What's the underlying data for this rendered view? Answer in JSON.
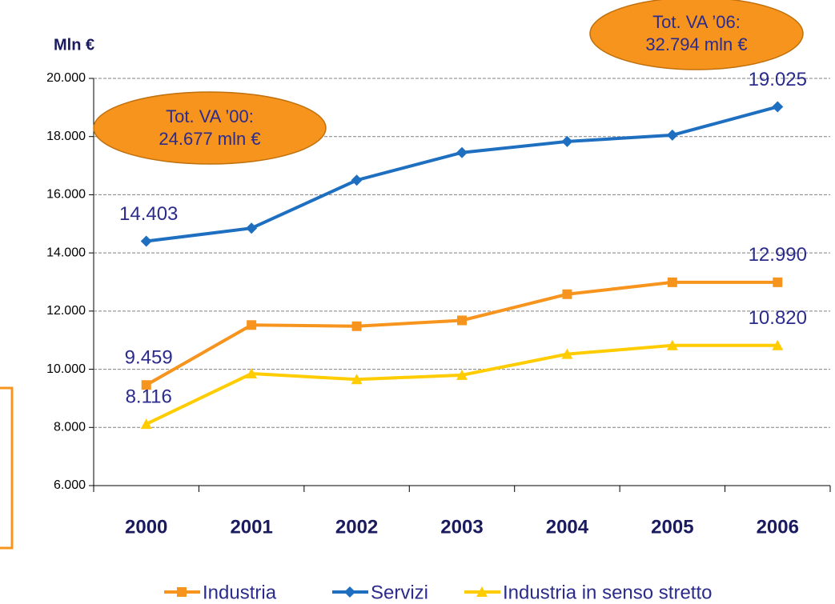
{
  "chart_data": {
    "type": "line",
    "y_axis_label": "Mln €",
    "categories": [
      "2000",
      "2001",
      "2002",
      "2003",
      "2004",
      "2005",
      "2006"
    ],
    "series": [
      {
        "name": "Industria",
        "color": "#f7941d",
        "marker": "square",
        "values": [
          9459,
          11520,
          11480,
          11680,
          12580,
          12990,
          12990
        ],
        "value_labels": [
          "9.459",
          null,
          null,
          null,
          null,
          null,
          "12.990"
        ]
      },
      {
        "name": "Servizi",
        "color": "#1f6fc1",
        "marker": "diamond",
        "values": [
          14403,
          14850,
          16500,
          17450,
          17830,
          18050,
          19025
        ],
        "value_labels": [
          "14.403",
          null,
          null,
          null,
          null,
          null,
          "19.025"
        ]
      },
      {
        "name": "Industria in senso stretto",
        "color": "#ffcc00",
        "marker": "triangle",
        "values": [
          8116,
          9850,
          9650,
          9800,
          10520,
          10820,
          10820
        ],
        "value_labels": [
          "8.116",
          null,
          null,
          null,
          null,
          null,
          "10.820"
        ]
      }
    ],
    "ylim": [
      6000,
      20000
    ],
    "yticks": [
      {
        "value": 6000,
        "label": "6.000"
      },
      {
        "value": 8000,
        "label": "8.000"
      },
      {
        "value": 10000,
        "label": "10.000"
      },
      {
        "value": 12000,
        "label": "12.000"
      },
      {
        "value": 14000,
        "label": "14.000"
      },
      {
        "value": 16000,
        "label": "16.000"
      },
      {
        "value": 18000,
        "label": "18.000"
      },
      {
        "value": 20000,
        "label": "20.000"
      }
    ],
    "grid": true,
    "legend": "bottom",
    "annotations": [
      {
        "lines": [
          "Tot. VA ’00:",
          "24.677 mln €"
        ]
      },
      {
        "lines": [
          "Tot. VA ’06:",
          "32.794 mln €"
        ]
      }
    ]
  }
}
